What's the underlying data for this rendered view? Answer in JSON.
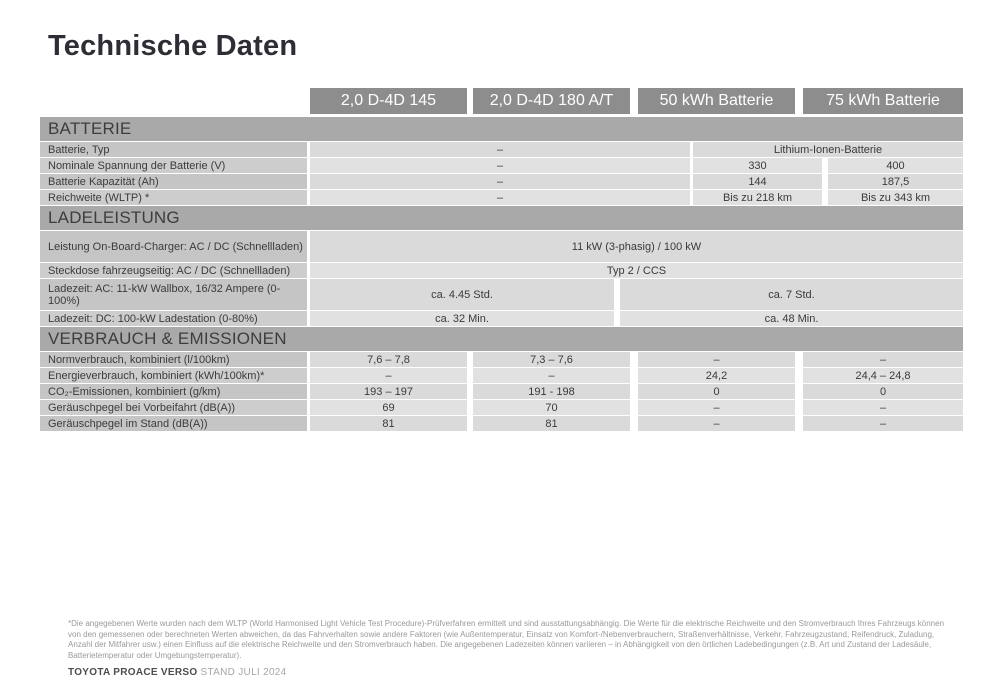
{
  "page": {
    "title": "Technische Daten"
  },
  "colors": {
    "title_text": "#2d2d35",
    "header_box_bg": "#8d8d8d",
    "header_box_text": "#ffffff",
    "section_band_bg": "#a9a9a9",
    "label_cell_bg": "#c7c7c7",
    "value_cell_bg": "#dcdcdc",
    "footnote_text": "#9a9a9a"
  },
  "columns": [
    "2,0 D-4D 145",
    "2,0 D-4D 180 A/T",
    "50 kWh Batterie",
    "75 kWh Batterie"
  ],
  "sections": [
    {
      "title": "BATTERIE",
      "rows": [
        {
          "label": "Batterie, Typ",
          "cells": [
            "–",
            "Lithium-Ionen-Batterie"
          ]
        },
        {
          "label": "Nominale Spannung der Batterie (V)",
          "cells": [
            "–",
            "330",
            "400"
          ]
        },
        {
          "label": "Batterie Kapazität (Ah)",
          "cells": [
            "–",
            "144",
            "187,5"
          ]
        },
        {
          "label": "Reichweite (WLTP) *",
          "cells": [
            "–",
            "Bis zu 218 km",
            "Bis zu 343 km"
          ]
        }
      ]
    },
    {
      "title": "LADELEISTUNG",
      "rows": [
        {
          "label": "Leistung On-Board-Charger: AC / DC (Schnellladen)",
          "cells": [
            "11 kW (3-phasig) / 100 kW"
          ]
        },
        {
          "label": "Steckdose fahrzeugseitig: AC / DC (Schnellladen)",
          "cells": [
            "Typ 2 / CCS"
          ]
        },
        {
          "label": "Ladezeit: AC: 11-kW Wallbox, 16/32 Ampere (0-100%)",
          "cells": [
            "ca. 4.45 Std.",
            "ca. 7 Std."
          ]
        },
        {
          "label": "Ladezeit: DC: 100-kW Ladestation (0-80%)",
          "cells": [
            "ca. 32 Min.",
            "ca. 48 Min."
          ]
        }
      ]
    },
    {
      "title": "VERBRAUCH & EMISSIONEN",
      "rows": [
        {
          "label": "Normverbrauch, kombiniert (l/100km)",
          "cells": [
            "7,6 – 7,8",
            "7,3 – 7,6",
            "–",
            "–"
          ]
        },
        {
          "label": "Energieverbrauch, kombiniert (kWh/100km)*",
          "cells": [
            "–",
            "–",
            "24,2",
            "24,4 – 24,8"
          ]
        },
        {
          "label": "CO₂-Emissionen, kombiniert (g/km)",
          "cells": [
            "193 – 197",
            "191 - 198",
            "0",
            "0"
          ]
        },
        {
          "label": "Geräuschpegel bei Vorbeifahrt (dB(A))",
          "cells": [
            "69",
            "70",
            "–",
            "–"
          ]
        },
        {
          "label": "Geräuschpegel im Stand (dB(A))",
          "cells": [
            "81",
            "81",
            "–",
            "–"
          ]
        }
      ]
    }
  ],
  "footnote": {
    "lines": [
      "*Die angegebenen Werte wurden nach dem WLTP (World Harmonised Light Vehicle Test Procedure)-Prüfverfahren ermittelt und sind ausstattungsabhängig. Die Werte für die elektrische Reichweite und den Stromverbrauch Ihres Fahrzeugs können",
      "von den gemessenen oder berechneten Werten abweichen, da das Fahrverhalten sowie andere Faktoren (wie Außentemperatur, Einsatz von Komfort-/Nebenverbrauchern, Straßenverhältnisse, Verkehr, Fahrzeugzustand, Reifendruck, Zuladung,",
      "Anzahl der Mitfahrer usw.) einen Einfluss auf die elektrische Reichweite und den Stromverbrauch haben. Die angegebenen Ladezeiten können variieren – in Abhängigkeit von den örtlichen Ladebedingungen (z.B. Art und Zustand der Ladesäule,",
      "Batterietemperatur oder Umgebungstemperatur)."
    ]
  },
  "footer": {
    "model": "TOYOTA PROACE VERSO",
    "stand": "STAND JULI 2024"
  }
}
